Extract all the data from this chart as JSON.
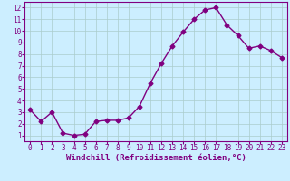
{
  "x": [
    0,
    1,
    2,
    3,
    4,
    5,
    6,
    7,
    8,
    9,
    10,
    11,
    12,
    13,
    14,
    15,
    16,
    17,
    18,
    19,
    20,
    21,
    22,
    23
  ],
  "y": [
    3.2,
    2.2,
    3.0,
    1.2,
    1.0,
    1.1,
    2.2,
    2.3,
    2.3,
    2.5,
    3.5,
    5.5,
    7.2,
    8.7,
    9.9,
    11.0,
    11.8,
    12.0,
    10.5,
    9.6,
    8.5,
    8.7,
    8.3,
    7.7
  ],
  "line_color": "#800080",
  "marker": "D",
  "marker_size": 2.5,
  "bg_color": "#cceeff",
  "grid_color": "#aacccc",
  "xlabel": "Windchill (Refroidissement éolien,°C)",
  "xlim": [
    -0.5,
    23.5
  ],
  "ylim": [
    0.5,
    12.5
  ],
  "yticks": [
    1,
    2,
    3,
    4,
    5,
    6,
    7,
    8,
    9,
    10,
    11,
    12
  ],
  "xticks": [
    0,
    1,
    2,
    3,
    4,
    5,
    6,
    7,
    8,
    9,
    10,
    11,
    12,
    13,
    14,
    15,
    16,
    17,
    18,
    19,
    20,
    21,
    22,
    23
  ],
  "xlabel_color": "#800080",
  "tick_color": "#800080",
  "spine_color": "#800080",
  "tick_fontsize": 5.5,
  "xlabel_fontsize": 6.5
}
